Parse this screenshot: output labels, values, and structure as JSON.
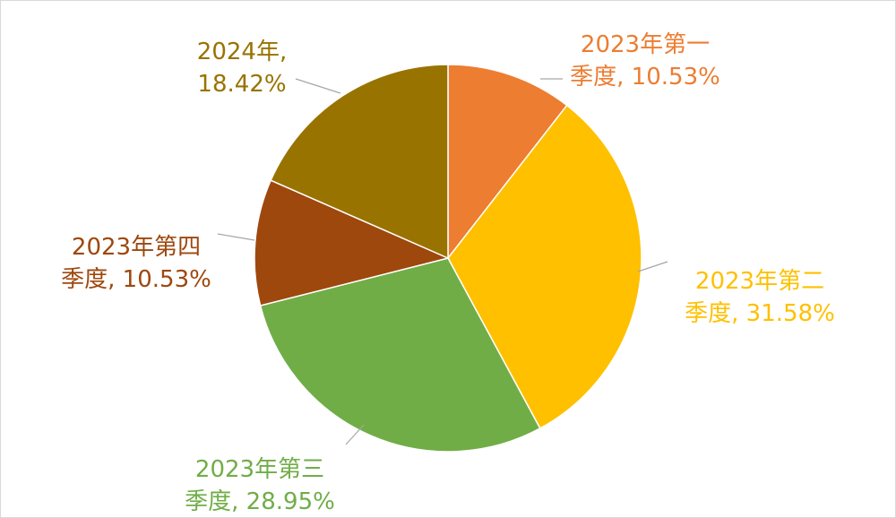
{
  "chart_data": {
    "type": "pie",
    "title": "",
    "categories": [
      "2023年第一季度",
      "2023年第二季度",
      "2023年第三季度",
      "2023年第四季度",
      "2024年"
    ],
    "values": [
      10.53,
      31.58,
      28.95,
      10.53,
      18.42
    ],
    "value_unit": "%",
    "colors": [
      "#ED7D31",
      "#FFC000",
      "#70AD47",
      "#9E480E",
      "#997300"
    ],
    "start_angle_deg": 0,
    "direction": "clockwise",
    "labels": [
      {
        "line1": "2023年第一",
        "line2": "季度, 10.53%"
      },
      {
        "line1": "2023年第二",
        "line2": "季度, 31.58%"
      },
      {
        "line1": "2023年第三",
        "line2": "季度, 28.95%"
      },
      {
        "line1": "2023年第四",
        "line2": "季度, 10.53%"
      },
      {
        "line1": "2024年,",
        "line2": "18.42%"
      }
    ],
    "leader_color": "#A6A6A6",
    "legend": "none"
  }
}
